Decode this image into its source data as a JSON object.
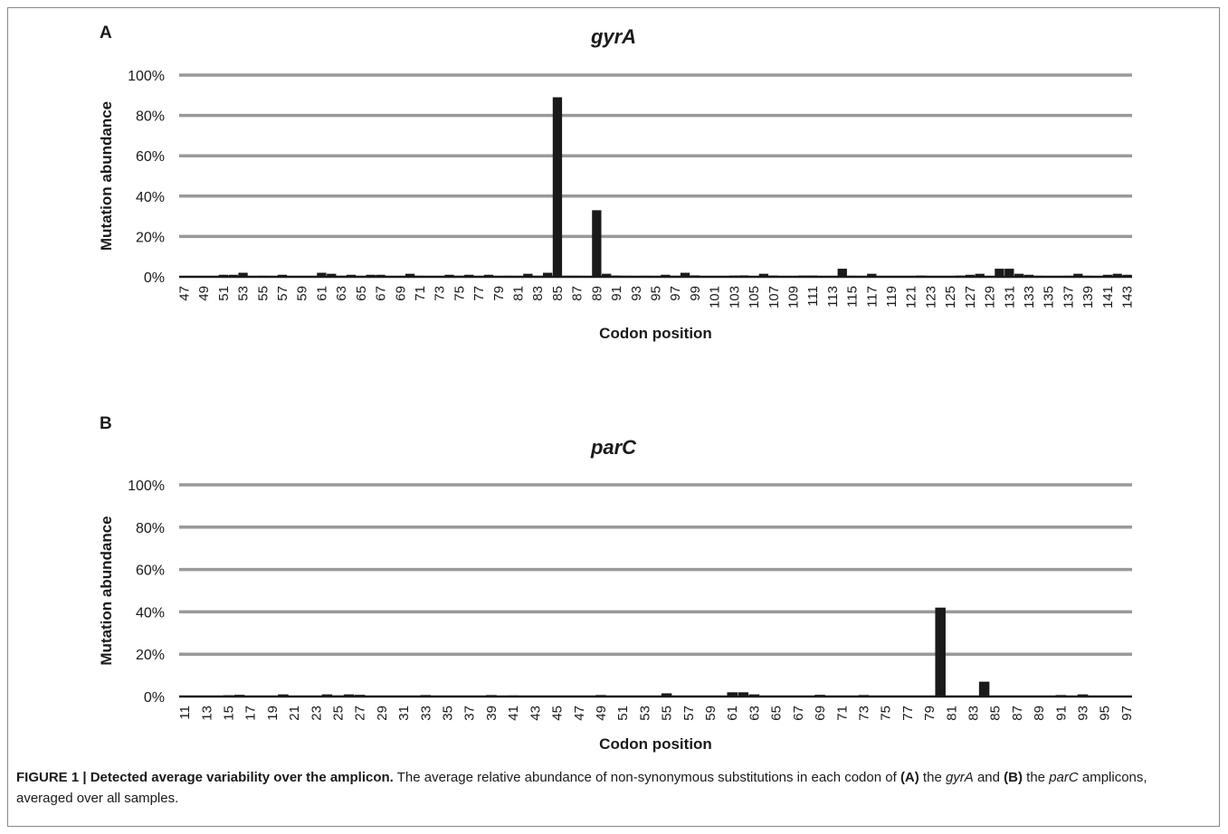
{
  "panels": [
    {
      "label": "A",
      "title": "gyrA"
    },
    {
      "label": "B",
      "title": "parC"
    }
  ],
  "caption": {
    "figure_label": "FIGURE 1 | Detected average variability over the amplicon.",
    "t1": " The average relative abundance of non-synonymous substitutions in each codon of ",
    "b1": "(A)",
    "t2": " the ",
    "i1": "gyrA",
    "t3": " and ",
    "b2": "(B)",
    "t4": " the ",
    "i2": "parC",
    "t5": " amplicons, averaged over all samples."
  },
  "chart_data": [
    {
      "type": "bar",
      "title": "gyrA",
      "xlabel": "Codon position",
      "ylabel": "Mutation abundance",
      "ylim": [
        0,
        100
      ],
      "yticks": [
        0,
        20,
        40,
        60,
        80,
        100
      ],
      "ytick_format": "percent",
      "grid": true,
      "bar_color": "#1a1a1a",
      "grid_color": "#999999",
      "categories": [
        47,
        48,
        49,
        50,
        51,
        52,
        53,
        54,
        55,
        56,
        57,
        58,
        59,
        60,
        61,
        62,
        63,
        64,
        65,
        66,
        67,
        68,
        69,
        70,
        71,
        72,
        73,
        74,
        75,
        76,
        77,
        78,
        79,
        80,
        81,
        82,
        83,
        84,
        85,
        86,
        87,
        88,
        89,
        90,
        91,
        92,
        93,
        94,
        95,
        96,
        97,
        98,
        99,
        100,
        101,
        102,
        103,
        104,
        105,
        106,
        107,
        108,
        109,
        110,
        111,
        112,
        113,
        114,
        115,
        116,
        117,
        118,
        119,
        120,
        121,
        122,
        123,
        124,
        125,
        126,
        127,
        128,
        129,
        130,
        131,
        132,
        133,
        134,
        135,
        136,
        137,
        138,
        139,
        140,
        141,
        142,
        143
      ],
      "tick_labels": [
        47,
        49,
        51,
        53,
        55,
        57,
        59,
        61,
        63,
        65,
        67,
        69,
        71,
        73,
        75,
        77,
        79,
        81,
        83,
        85,
        87,
        89,
        91,
        93,
        95,
        97,
        99,
        101,
        103,
        105,
        107,
        109,
        111,
        113,
        115,
        117,
        119,
        121,
        123,
        125,
        127,
        129,
        131,
        133,
        135,
        137,
        139,
        141,
        143
      ],
      "values": [
        0.3,
        0.3,
        0.3,
        0.4,
        1,
        1,
        2,
        0.4,
        0.5,
        0.4,
        1,
        0.4,
        0.4,
        0.4,
        2,
        1.5,
        0.5,
        1,
        0.4,
        1,
        1,
        0.4,
        0.4,
        1.5,
        0.5,
        0.4,
        0.4,
        1,
        0.5,
        1,
        0.3,
        1,
        0.4,
        0.5,
        0.4,
        1.5,
        0.5,
        2,
        89,
        0.5,
        0.5,
        0.4,
        33,
        1.5,
        0.6,
        0.5,
        0.4,
        0.5,
        0.4,
        1,
        0.5,
        2,
        0.7,
        0.4,
        0.3,
        0.4,
        0.6,
        0.7,
        0.4,
        1.5,
        0.6,
        0.4,
        0.4,
        0.6,
        0.6,
        0.4,
        0.4,
        4,
        0.5,
        0.4,
        1.5,
        0.4,
        0.4,
        0.4,
        0.4,
        0.6,
        0.4,
        0.4,
        0.4,
        0.6,
        1,
        1.5,
        0.4,
        4,
        4,
        1.5,
        1,
        0.5,
        0.4,
        0.4,
        0.5,
        1.5,
        0.5,
        0.4,
        1,
        1.5,
        1
      ]
    },
    {
      "type": "bar",
      "title": "parC",
      "xlabel": "Codon position",
      "ylabel": "Mutation abundance",
      "ylim": [
        0,
        100
      ],
      "yticks": [
        0,
        20,
        40,
        60,
        80,
        100
      ],
      "ytick_format": "percent",
      "grid": true,
      "bar_color": "#1a1a1a",
      "grid_color": "#999999",
      "categories": [
        11,
        12,
        13,
        14,
        15,
        16,
        17,
        18,
        19,
        20,
        21,
        22,
        23,
        24,
        25,
        26,
        27,
        28,
        29,
        30,
        31,
        32,
        33,
        34,
        35,
        36,
        37,
        38,
        39,
        40,
        41,
        42,
        43,
        44,
        45,
        46,
        47,
        48,
        49,
        50,
        51,
        52,
        53,
        54,
        55,
        56,
        57,
        58,
        59,
        60,
        61,
        62,
        63,
        64,
        65,
        66,
        67,
        68,
        69,
        70,
        71,
        72,
        73,
        74,
        75,
        76,
        77,
        78,
        79,
        80,
        81,
        82,
        83,
        84,
        85,
        86,
        87,
        88,
        89,
        90,
        91,
        92,
        93,
        94,
        95,
        96,
        97
      ],
      "tick_labels": [
        11,
        13,
        15,
        17,
        19,
        21,
        23,
        25,
        27,
        29,
        31,
        33,
        35,
        37,
        39,
        41,
        43,
        45,
        47,
        49,
        51,
        53,
        55,
        57,
        59,
        61,
        63,
        65,
        67,
        69,
        71,
        73,
        75,
        77,
        79,
        81,
        83,
        85,
        87,
        89,
        91,
        93,
        95,
        97
      ],
      "values": [
        0.2,
        0.2,
        0.2,
        0.2,
        0.6,
        0.8,
        0.3,
        0.3,
        0.3,
        1,
        0.3,
        0.3,
        0.3,
        1,
        0.5,
        1,
        0.8,
        0.3,
        0.2,
        0.2,
        0.2,
        0.2,
        0.7,
        0.3,
        0.2,
        0.2,
        0.2,
        0.2,
        0.7,
        0.2,
        0.5,
        0.2,
        0.2,
        0.2,
        0.4,
        0.2,
        0.4,
        0.2,
        0.7,
        0.2,
        0.3,
        0.2,
        0.2,
        0.2,
        1.5,
        0.3,
        0.2,
        0.2,
        0.3,
        0.2,
        2,
        2,
        1,
        0.3,
        0.3,
        0.2,
        0.3,
        0.2,
        0.8,
        0.2,
        0.2,
        0.2,
        0.7,
        0.2,
        0.2,
        0.2,
        0.2,
        0.2,
        0.3,
        42,
        0.2,
        0.2,
        0.2,
        7,
        0.2,
        0.2,
        0.2,
        0.2,
        0.4,
        0.2,
        0.7,
        0.2,
        1,
        0.2,
        0.2,
        0.2,
        0.2
      ]
    }
  ]
}
